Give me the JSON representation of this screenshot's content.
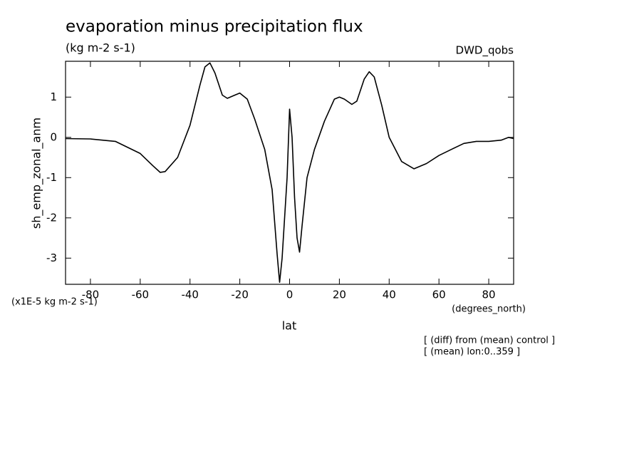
{
  "chart_data": {
    "type": "line",
    "title": "evaporation minus precipitation flux",
    "subtitle": "(kg m-2 s-1)",
    "dataset": "DWD_qobs",
    "y_label": "sh_emp_zonal_anm",
    "y_units": "(x1E-5 kg m-2 s-1)",
    "x_label": "lat",
    "x_units": "(degrees_north)",
    "notes": [
      "[ (diff) from (mean) control ]",
      "[ (mean) lon:0..359 ]"
    ],
    "x": [
      -90,
      -80,
      -70,
      -60,
      -55,
      -52,
      -50,
      -45,
      -40,
      -36,
      -34,
      -32,
      -30,
      -27,
      -25,
      -22,
      -20,
      -17,
      -14,
      -10,
      -7,
      -5,
      -4,
      -3,
      -1,
      0,
      1,
      2,
      3,
      4,
      5,
      7,
      10,
      14,
      18,
      20,
      22,
      25,
      27,
      30,
      32,
      34,
      37,
      40,
      45,
      50,
      55,
      60,
      65,
      70,
      75,
      80,
      85,
      88,
      90
    ],
    "series": [
      {
        "color": "#000000",
        "values": [
          -0.03,
          -0.04,
          -0.1,
          -0.4,
          -0.7,
          -0.87,
          -0.85,
          -0.5,
          0.3,
          1.3,
          1.75,
          1.85,
          1.6,
          1.05,
          0.97,
          1.05,
          1.1,
          0.95,
          0.45,
          -0.3,
          -1.3,
          -2.9,
          -3.6,
          -3.0,
          -1.0,
          0.7,
          0.0,
          -1.5,
          -2.5,
          -2.85,
          -2.2,
          -1.0,
          -0.3,
          0.4,
          0.95,
          1.0,
          0.95,
          0.82,
          0.9,
          1.45,
          1.63,
          1.5,
          0.8,
          0.0,
          -0.6,
          -0.78,
          -0.65,
          -0.45,
          -0.3,
          -0.15,
          -0.1,
          -0.1,
          -0.07,
          0.0,
          -0.03
        ]
      }
    ],
    "xlim": [
      -90,
      90
    ],
    "ylim": [
      -3.65,
      1.89
    ],
    "xticks": [
      -80,
      -60,
      -40,
      -20,
      0,
      20,
      40,
      60,
      80
    ],
    "yticks": [
      -3,
      -2,
      -1,
      0,
      1
    ]
  }
}
